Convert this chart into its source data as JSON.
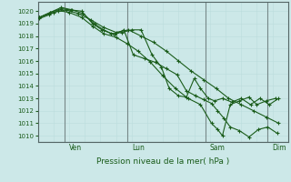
{
  "bg_color": "#cce8e8",
  "grid_color_major": "#aabbbb",
  "grid_color_minor": "#bbdddd",
  "line_color": "#1a5c1a",
  "xlabel": "Pression niveau de la mer( hPa )",
  "ylim": [
    1009.5,
    1020.75
  ],
  "xlim": [
    0.0,
    8.0
  ],
  "yticks": [
    1010,
    1011,
    1012,
    1013,
    1014,
    1015,
    1016,
    1017,
    1018,
    1019,
    1020
  ],
  "xtick_labels": [
    "Ven",
    "Lun",
    "Sam",
    "Dim"
  ],
  "xtick_positions": [
    1.0,
    3.0,
    5.5,
    7.5
  ],
  "vline_positions": [
    0.85,
    2.85,
    5.35,
    7.35
  ],
  "s1_x": [
    0.05,
    0.5,
    0.9,
    1.3,
    1.7,
    2.1,
    2.5,
    2.9,
    3.3,
    3.7,
    4.1,
    4.5,
    4.9,
    5.3,
    5.7,
    6.1,
    6.5,
    6.9,
    7.3,
    7.7
  ],
  "s1_y": [
    1019.5,
    1019.9,
    1020.1,
    1019.8,
    1019.3,
    1018.7,
    1018.3,
    1018.5,
    1018.0,
    1017.5,
    1016.8,
    1016.0,
    1015.2,
    1014.5,
    1013.8,
    1013.0,
    1012.5,
    1012.0,
    1011.5,
    1011.0
  ],
  "s2_x": [
    0.05,
    0.4,
    0.75,
    1.05,
    1.4,
    1.75,
    2.05,
    2.35,
    2.7,
    3.0,
    3.3,
    3.65,
    3.95,
    4.2,
    4.5,
    4.75,
    5.0,
    5.2,
    5.45,
    5.65,
    5.9,
    6.2,
    6.5,
    6.8,
    7.1,
    7.4,
    7.7
  ],
  "s2_y": [
    1019.5,
    1019.9,
    1020.2,
    1020.1,
    1020.0,
    1019.0,
    1018.5,
    1018.2,
    1018.3,
    1018.5,
    1018.5,
    1016.5,
    1015.5,
    1013.8,
    1013.2,
    1013.1,
    1014.6,
    1013.8,
    1013.0,
    1012.8,
    1013.0,
    1012.7,
    1013.0,
    1012.5,
    1013.0,
    1012.5,
    1013.0
  ],
  "s3_x": [
    0.05,
    0.4,
    0.75,
    1.1,
    1.45,
    1.8,
    2.1,
    2.45,
    2.75,
    3.05,
    3.4,
    3.75,
    4.1,
    4.45,
    4.75,
    5.05,
    5.3,
    5.55,
    5.75,
    5.95,
    6.15,
    6.45,
    6.75,
    7.05,
    7.35,
    7.65
  ],
  "s3_y": [
    1019.5,
    1019.9,
    1020.3,
    1020.1,
    1019.8,
    1019.0,
    1018.5,
    1018.1,
    1018.5,
    1016.5,
    1016.2,
    1015.9,
    1015.4,
    1014.9,
    1013.6,
    1013.2,
    1012.9,
    1012.6,
    1012.0,
    1011.4,
    1010.7,
    1010.4,
    1009.9,
    1010.5,
    1010.7,
    1010.2
  ],
  "s4_x": [
    0.05,
    0.35,
    0.65,
    1.0,
    1.4,
    1.75,
    2.1,
    2.5,
    2.85,
    3.2,
    3.6,
    4.0,
    4.4,
    4.8,
    5.2,
    5.55,
    5.75,
    5.9,
    6.15,
    6.45,
    6.75,
    7.0,
    7.3,
    7.6
  ],
  "s4_y": [
    1019.4,
    1019.7,
    1020.05,
    1019.9,
    1019.5,
    1018.8,
    1018.2,
    1017.9,
    1017.4,
    1016.8,
    1015.9,
    1014.8,
    1013.8,
    1013.0,
    1012.5,
    1011.0,
    1010.5,
    1010.0,
    1012.5,
    1012.8,
    1013.1,
    1012.5,
    1012.8,
    1013.0
  ]
}
